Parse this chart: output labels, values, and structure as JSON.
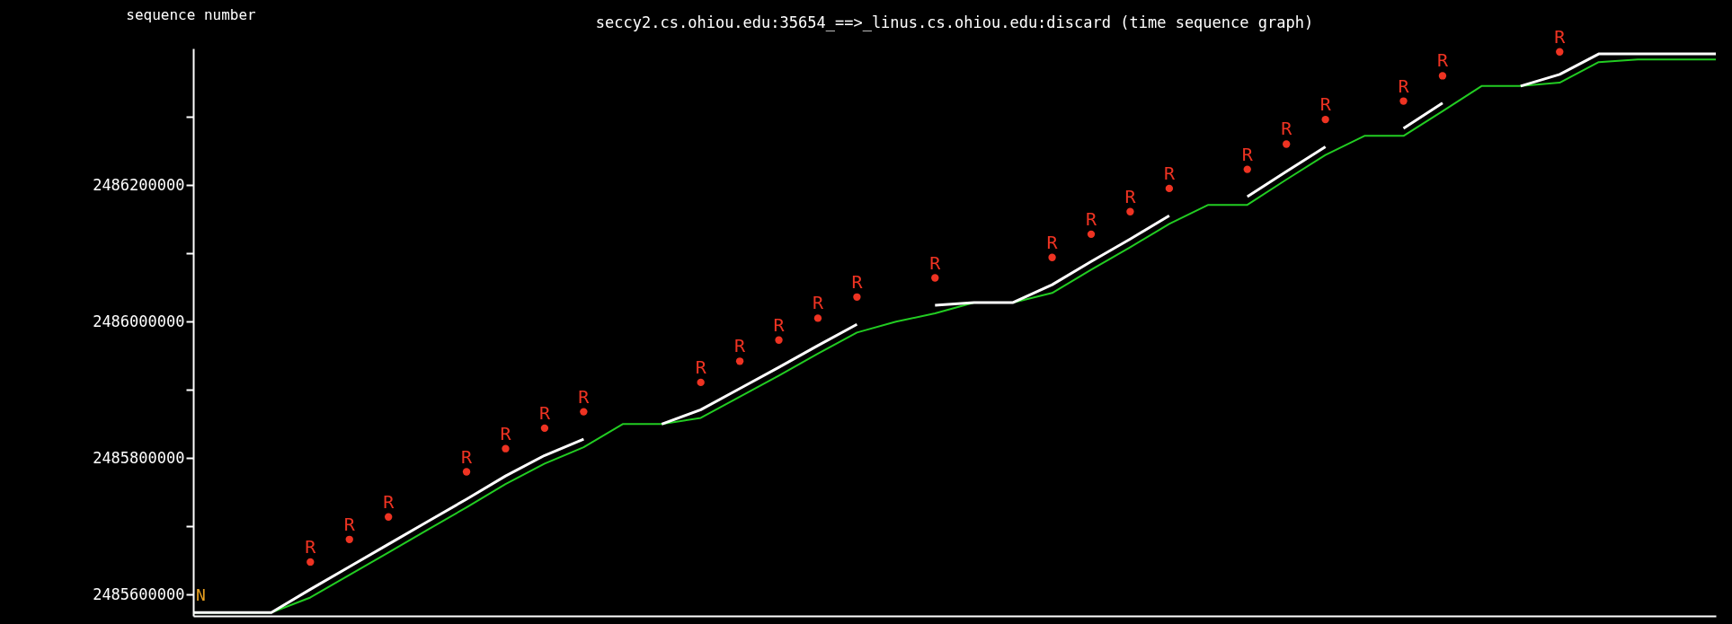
{
  "chart_data": {
    "type": "line",
    "title": "seccy2.cs.ohiou.edu:35654_==>_linus.cs.ohiou.edu:discard (time sequence graph)",
    "ylabel": "sequence number",
    "categories": [
      null,
      null,
      null,
      null,
      null,
      null,
      null,
      null,
      null,
      null,
      null,
      null,
      null,
      null,
      null,
      null,
      null,
      null,
      null,
      null,
      null,
      null,
      null,
      null,
      null,
      null,
      null,
      null,
      null,
      null,
      null,
      null,
      null,
      null,
      null,
      null,
      null,
      null,
      null,
      null
    ],
    "ylim": [
      2485569000,
      2486400000
    ],
    "yticks": [
      2485600000,
      {
        "value": 2485700000,
        "label": null
      },
      2485800000,
      {
        "value": 2485900000,
        "label": null
      },
      2486000000,
      {
        "value": 2486100000,
        "label": null
      },
      2486200000,
      {
        "value": 2486300000,
        "label": null
      }
    ],
    "tick_labels": "y",
    "grid": false,
    "marker": "none",
    "line_style": "solid",
    "annotations": [
      "N"
    ],
    "series": [
      {
        "color": "#22cc22",
        "values": [
          2485574000,
          2485574000,
          2485574000,
          2485596000,
          2485629000,
          2485662000,
          2485695000,
          2485728000,
          2485762000,
          2485792000,
          2485816000,
          2485850000,
          2485850000,
          2485859000,
          2485890000,
          2485921000,
          2485953000,
          2485984000,
          2486000000,
          2486012000,
          2486028000,
          2486028000,
          2486042000,
          2486076000,
          2486109000,
          2486143000,
          2486171000,
          2486171000,
          2486208000,
          2486244000,
          2486272000,
          2486272000,
          2486308000,
          2486345000,
          2486345000,
          2486350000,
          2486380000,
          2486384000,
          2486384000,
          2486384000
        ]
      },
      {
        "color": "#ffffff",
        "values": [
          2485574000,
          2485574000,
          2485574000,
          2485608000,
          2485641000,
          2485674000,
          2485707000,
          2485740000,
          2485774000,
          2485804000,
          2485828000,
          null,
          2485850000,
          2485871000,
          2485902000,
          2485933000,
          2485965000,
          2485996000,
          null,
          2486024000,
          2486028000,
          2486028000,
          2486054000,
          2486088000,
          2486121000,
          2486155000,
          null,
          2486183000,
          2486220000,
          2486256000,
          null,
          2486283000,
          2486320000,
          null,
          2486345000,
          2486362000,
          2486392000,
          2486392000,
          2486392000,
          2486392000
        ]
      },
      {
        "type": "scatter",
        "color": "#ee3322",
        "marker": "circle",
        "values": [
          null,
          null,
          null,
          2485648000,
          2485681000,
          2485714000,
          null,
          2485780000,
          2485814000,
          2485844000,
          2485868000,
          null,
          null,
          2485911000,
          2485942000,
          2485973000,
          2486005000,
          2486036000,
          null,
          2486064000,
          null,
          null,
          2486094000,
          2486128000,
          2486161000,
          2486195000,
          null,
          2486223000,
          2486260000,
          2486296000,
          null,
          2486323000,
          2486360000,
          null,
          null,
          2486395000,
          null,
          null,
          null,
          null
        ],
        "value_labels": [
          null,
          null,
          null,
          "R",
          "R",
          "R",
          null,
          "R",
          "R",
          "R",
          "R",
          null,
          null,
          "R",
          "R",
          "R",
          "R",
          "R",
          null,
          "R",
          null,
          null,
          "R",
          "R",
          "R",
          "R",
          null,
          "R",
          "R",
          "R",
          null,
          "R",
          "R",
          null,
          null,
          "R",
          null,
          null,
          null,
          null
        ]
      }
    ]
  }
}
